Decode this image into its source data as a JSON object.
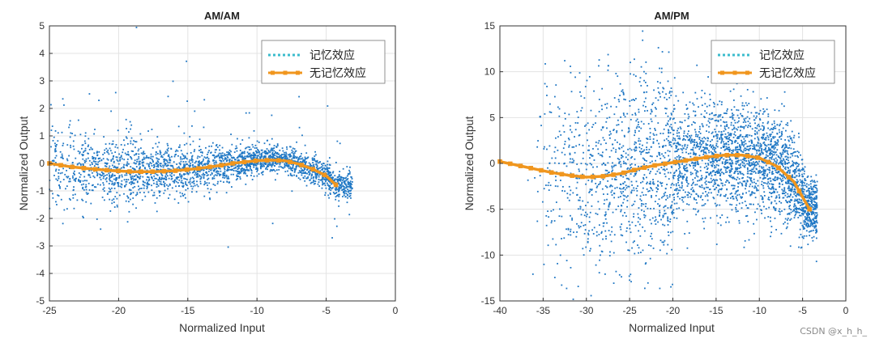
{
  "chart_data": [
    {
      "type": "scatter",
      "title": "AM/AM",
      "xlabel": "Normalized Input",
      "ylabel": "Normalized Output",
      "xlim": [
        -25,
        0
      ],
      "ylim": [
        -5,
        5
      ],
      "xticks": [
        "-25",
        "-20",
        "-15",
        "-10",
        "-5",
        "0"
      ],
      "yticks": [
        "5",
        "4",
        "3",
        "2",
        "1",
        "0",
        "-1",
        "-2",
        "-3",
        "-4",
        "-5"
      ],
      "grid": true,
      "legend_position": "top-right",
      "scatter_color": "#1f77c4",
      "series": [
        {
          "name": "记忆效应",
          "style": "dotted",
          "color": "#3bbccd",
          "x": [
            -25,
            -23.5,
            -22,
            -20.5,
            -19,
            -17.5,
            -16,
            -14.5,
            -13,
            -11.5,
            -10,
            -9,
            -8,
            -7,
            -6,
            -5,
            -4.3
          ],
          "y": [
            0,
            -0.12,
            -0.2,
            -0.26,
            -0.3,
            -0.3,
            -0.27,
            -0.2,
            -0.1,
            0.02,
            0.1,
            0.12,
            0.1,
            -0.02,
            -0.2,
            -0.45,
            -0.78
          ]
        },
        {
          "name": "无记忆效应",
          "style": "solid-square-markers",
          "color": "#f0961e",
          "x": [
            -25,
            -23.5,
            -22,
            -20.5,
            -19,
            -17.5,
            -16,
            -14.5,
            -13,
            -11.5,
            -10,
            -9,
            -8,
            -7,
            -6,
            -5,
            -4.3
          ],
          "y": [
            0,
            -0.12,
            -0.2,
            -0.26,
            -0.3,
            -0.3,
            -0.27,
            -0.2,
            -0.1,
            0.02,
            0.1,
            0.12,
            0.1,
            -0.02,
            -0.2,
            -0.45,
            -0.78
          ]
        }
      ]
    },
    {
      "type": "scatter",
      "title": "AM/PM",
      "xlabel": "Normalized Input",
      "ylabel": "Normalized Output",
      "xlim": [
        -40,
        0
      ],
      "ylim": [
        -15,
        15
      ],
      "xticks": [
        "-40",
        "-35",
        "-30",
        "-25",
        "-20",
        "-15",
        "-10",
        "-5",
        "0"
      ],
      "yticks": [
        "15",
        "10",
        "5",
        "0",
        "-5",
        "-10",
        "-15"
      ],
      "grid": true,
      "legend_position": "top-right",
      "scatter_color": "#1f77c4",
      "series": [
        {
          "name": "记忆效应",
          "style": "dotted",
          "color": "#3bbccd",
          "x": [
            -40,
            -38,
            -36,
            -34,
            -32,
            -30,
            -28,
            -26,
            -24,
            -22,
            -20,
            -18,
            -16,
            -14,
            -12,
            -10,
            -8,
            -6,
            -4.2
          ],
          "y": [
            0.2,
            -0.2,
            -0.6,
            -1.0,
            -1.3,
            -1.5,
            -1.4,
            -1.1,
            -0.6,
            -0.2,
            0.1,
            0.4,
            0.7,
            0.9,
            0.9,
            0.6,
            -0.3,
            -2.0,
            -5.0
          ]
        },
        {
          "name": "无记忆效应",
          "style": "solid-square-markers",
          "color": "#f0961e",
          "x": [
            -40,
            -38,
            -36,
            -34,
            -32,
            -30,
            -28,
            -26,
            -24,
            -22,
            -20,
            -18,
            -16,
            -14,
            -12,
            -10,
            -8,
            -6,
            -4.2
          ],
          "y": [
            0.2,
            -0.2,
            -0.6,
            -1.0,
            -1.3,
            -1.5,
            -1.4,
            -1.1,
            -0.6,
            -0.2,
            0.1,
            0.4,
            0.7,
            0.9,
            0.9,
            0.6,
            -0.3,
            -2.0,
            -5.0
          ]
        }
      ]
    }
  ],
  "watermark": "CSDN @x_h_h_"
}
